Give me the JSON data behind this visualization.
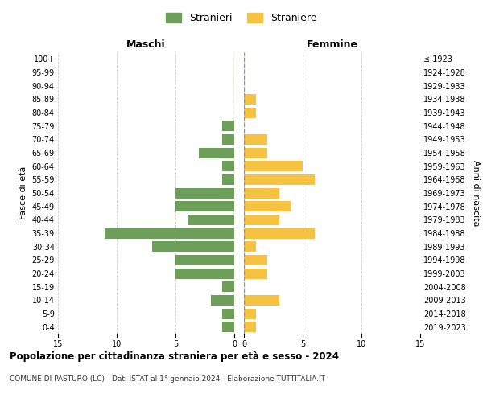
{
  "age_groups": [
    "0-4",
    "5-9",
    "10-14",
    "15-19",
    "20-24",
    "25-29",
    "30-34",
    "35-39",
    "40-44",
    "45-49",
    "50-54",
    "55-59",
    "60-64",
    "65-69",
    "70-74",
    "75-79",
    "80-84",
    "85-89",
    "90-94",
    "95-99",
    "100+"
  ],
  "birth_years": [
    "2019-2023",
    "2014-2018",
    "2009-2013",
    "2004-2008",
    "1999-2003",
    "1994-1998",
    "1989-1993",
    "1984-1988",
    "1979-1983",
    "1974-1978",
    "1969-1973",
    "1964-1968",
    "1959-1963",
    "1954-1958",
    "1949-1953",
    "1944-1948",
    "1939-1943",
    "1934-1938",
    "1929-1933",
    "1924-1928",
    "≤ 1923"
  ],
  "males": [
    1,
    1,
    2,
    1,
    5,
    5,
    7,
    11,
    4,
    5,
    5,
    1,
    1,
    3,
    1,
    1,
    0,
    0,
    0,
    0,
    0
  ],
  "females": [
    1,
    1,
    3,
    0,
    2,
    2,
    1,
    6,
    3,
    4,
    3,
    6,
    5,
    2,
    2,
    0,
    1,
    1,
    0,
    0,
    0
  ],
  "male_color": "#6d9e5a",
  "female_color": "#f5c242",
  "title": "Popolazione per cittadinanza straniera per età e sesso - 2024",
  "subtitle": "COMUNE DI PASTURO (LC) - Dati ISTAT al 1° gennaio 2024 - Elaborazione TUTTITALIA.IT",
  "legend_male": "Stranieri",
  "legend_female": "Straniere",
  "xlabel_left": "Maschi",
  "xlabel_right": "Femmine",
  "ylabel_left": "Fasce di età",
  "ylabel_right": "Anni di nascita",
  "xlim": 15,
  "background_color": "#ffffff",
  "grid_color": "#cccccc"
}
